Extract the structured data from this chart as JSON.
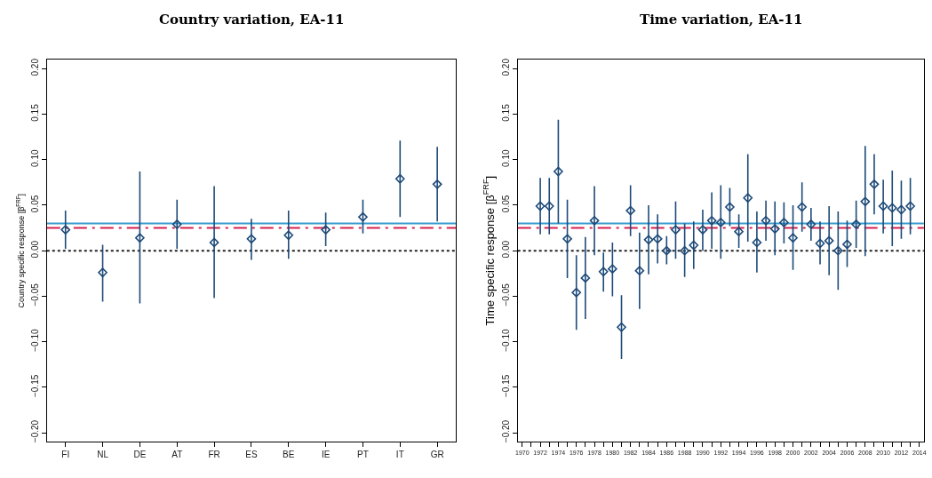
{
  "chart_data": [
    {
      "type": "scatter",
      "title": "Country variation, EA-11",
      "ylabel": "Country specific response [β$^{FRF}$]",
      "categories": [
        "FI",
        "NL",
        "DE",
        "AT",
        "FR",
        "ES",
        "BE",
        "IE",
        "PT",
        "IT",
        "GR"
      ],
      "series": [
        {
          "color": "#1d4a78",
          "values": [
            0.023,
            -0.024,
            0.014,
            0.029,
            0.009,
            0.013,
            0.017,
            0.023,
            0.037,
            0.079,
            0.073
          ],
          "errors": [
            [
              0.002,
              0.044
            ],
            [
              -0.056,
              0.0065
            ],
            [
              -0.058,
              0.087
            ],
            [
              0.002,
              0.056
            ],
            [
              -0.052,
              0.071
            ],
            [
              -0.01,
              0.035
            ],
            [
              -0.009,
              0.044
            ],
            [
              0.005,
              0.042
            ],
            [
              0.019,
              0.056
            ],
            [
              0.037,
              0.121
            ],
            [
              0.032,
              0.114
            ]
          ]
        }
      ],
      "marker": "diamond",
      "grid": false,
      "ylim": [
        -0.21,
        0.21
      ],
      "yticks": [
        {
          "value": -0.2,
          "label": "−0.20"
        },
        {
          "value": -0.15,
          "label": "−0.15"
        },
        {
          "value": -0.1,
          "label": "−0.10"
        },
        {
          "value": -0.05,
          "label": "−0.05"
        },
        {
          "value": 0,
          "label": "0.00"
        },
        {
          "value": 0.05,
          "label": "0.05"
        },
        {
          "value": 0.1,
          "label": "0.10"
        },
        {
          "value": 0.15,
          "label": "0.15"
        },
        {
          "value": 0.2,
          "label": "0.20"
        }
      ],
      "ref_lines": [
        {
          "axis": "y",
          "value": 0.03,
          "color": "#3a9bd0",
          "line_style": "solid"
        },
        {
          "axis": "y",
          "value": 0.025,
          "color": "#d62050",
          "line_style": "dashed"
        },
        {
          "axis": "y",
          "value": 0,
          "color": "#222222",
          "line_style": "dotted"
        }
      ]
    },
    {
      "type": "scatter",
      "title": "Time variation, EA-11",
      "ylabel": "Time specific response [β$^{FRF}$]",
      "x": [
        1972,
        1973,
        1974,
        1975,
        1976,
        1977,
        1978,
        1979,
        1980,
        1981,
        1982,
        1983,
        1984,
        1985,
        1986,
        1987,
        1988,
        1989,
        1990,
        1991,
        1992,
        1993,
        1994,
        1995,
        1996,
        1997,
        1998,
        1999,
        2000,
        2001,
        2002,
        2003,
        2004,
        2005,
        2006,
        2007,
        2008,
        2009,
        2010,
        2011,
        2012,
        2013
      ],
      "series": [
        {
          "color": "#1d4a78",
          "values": [
            0.049,
            0.049,
            0.087,
            0.013,
            -0.046,
            -0.03,
            0.033,
            -0.023,
            -0.02,
            -0.084,
            0.044,
            -0.022,
            0.012,
            0.013,
            0.0,
            0.023,
            0.0,
            0.006,
            0.023,
            0.033,
            0.031,
            0.048,
            0.021,
            0.058,
            0.009,
            0.033,
            0.024,
            0.031,
            0.014,
            0.048,
            0.029,
            0.008,
            0.011,
            0.0,
            0.007,
            0.029,
            0.054,
            0.073,
            0.049,
            0.047,
            0.045,
            0.049
          ],
          "errors": [
            [
              0.018,
              0.08
            ],
            [
              0.018,
              0.08
            ],
            [
              0.03,
              0.144
            ],
            [
              -0.03,
              0.056
            ],
            [
              -0.087,
              -0.005
            ],
            [
              -0.075,
              0.015
            ],
            [
              -0.005,
              0.071
            ],
            [
              -0.045,
              -0.002
            ],
            [
              -0.05,
              0.009
            ],
            [
              -0.119,
              -0.049
            ],
            [
              0.016,
              0.072
            ],
            [
              -0.064,
              0.02
            ],
            [
              -0.026,
              0.05
            ],
            [
              -0.014,
              0.04
            ],
            [
              -0.015,
              0.016
            ],
            [
              -0.009,
              0.054
            ],
            [
              -0.029,
              0.03
            ],
            [
              -0.02,
              0.032
            ],
            [
              0.0,
              0.045
            ],
            [
              0.002,
              0.064
            ],
            [
              -0.009,
              0.072
            ],
            [
              0.027,
              0.069
            ],
            [
              0.003,
              0.04
            ],
            [
              0.01,
              0.106
            ],
            [
              -0.024,
              0.043
            ],
            [
              0.011,
              0.055
            ],
            [
              -0.005,
              0.054
            ],
            [
              0.008,
              0.053
            ],
            [
              -0.021,
              0.05
            ],
            [
              0.021,
              0.075
            ],
            [
              0.011,
              0.047
            ],
            [
              -0.015,
              0.032
            ],
            [
              -0.027,
              0.049
            ],
            [
              -0.043,
              0.043
            ],
            [
              -0.018,
              0.033
            ],
            [
              0.003,
              0.055
            ],
            [
              -0.006,
              0.115
            ],
            [
              0.04,
              0.106
            ],
            [
              0.019,
              0.078
            ],
            [
              0.005,
              0.088
            ],
            [
              0.013,
              0.077
            ],
            [
              0.018,
              0.08
            ]
          ]
        }
      ],
      "marker": "diamond",
      "grid": false,
      "xlim": [
        1969.5,
        2014.5
      ],
      "xticks": [
        1970,
        {
          "value": 1971,
          "label": null
        },
        1972,
        {
          "value": 1973,
          "label": null
        },
        1974,
        {
          "value": 1975,
          "label": null
        },
        1976,
        {
          "value": 1977,
          "label": null
        },
        1978,
        {
          "value": 1979,
          "label": null
        },
        1980,
        {
          "value": 1981,
          "label": null
        },
        1982,
        {
          "value": 1983,
          "label": null
        },
        1984,
        {
          "value": 1985,
          "label": null
        },
        1986,
        {
          "value": 1987,
          "label": null
        },
        1988,
        {
          "value": 1989,
          "label": null
        },
        1990,
        {
          "value": 1991,
          "label": null
        },
        1992,
        {
          "value": 1993,
          "label": null
        },
        1994,
        {
          "value": 1995,
          "label": null
        },
        1996,
        {
          "value": 1997,
          "label": null
        },
        1998,
        {
          "value": 1999,
          "label": null
        },
        2000,
        {
          "value": 2001,
          "label": null
        },
        2002,
        {
          "value": 2003,
          "label": null
        },
        2004,
        {
          "value": 2005,
          "label": null
        },
        2006,
        {
          "value": 2007,
          "label": null
        },
        2008,
        {
          "value": 2009,
          "label": null
        },
        2010,
        {
          "value": 2011,
          "label": null
        },
        2012,
        {
          "value": 2013,
          "label": null
        },
        2014
      ],
      "ylim": [
        -0.21,
        0.21
      ],
      "yticks": [
        {
          "value": -0.2,
          "label": "−0.20"
        },
        {
          "value": -0.15,
          "label": "−0.15"
        },
        {
          "value": -0.1,
          "label": "−0.10"
        },
        {
          "value": -0.05,
          "label": "−0.05"
        },
        {
          "value": 0,
          "label": "0.00"
        },
        {
          "value": 0.05,
          "label": "0.05"
        },
        {
          "value": 0.1,
          "label": "0.10"
        },
        {
          "value": 0.15,
          "label": "0.15"
        },
        {
          "value": 0.2,
          "label": "0.20"
        }
      ],
      "ref_lines": [
        {
          "axis": "y",
          "value": 0.03,
          "color": "#3a9bd0",
          "line_style": "solid"
        },
        {
          "axis": "y",
          "value": 0.025,
          "color": "#d62050",
          "line_style": "dashed"
        },
        {
          "axis": "y",
          "value": 0,
          "color": "#222222",
          "line_style": "dotted"
        }
      ]
    }
  ]
}
